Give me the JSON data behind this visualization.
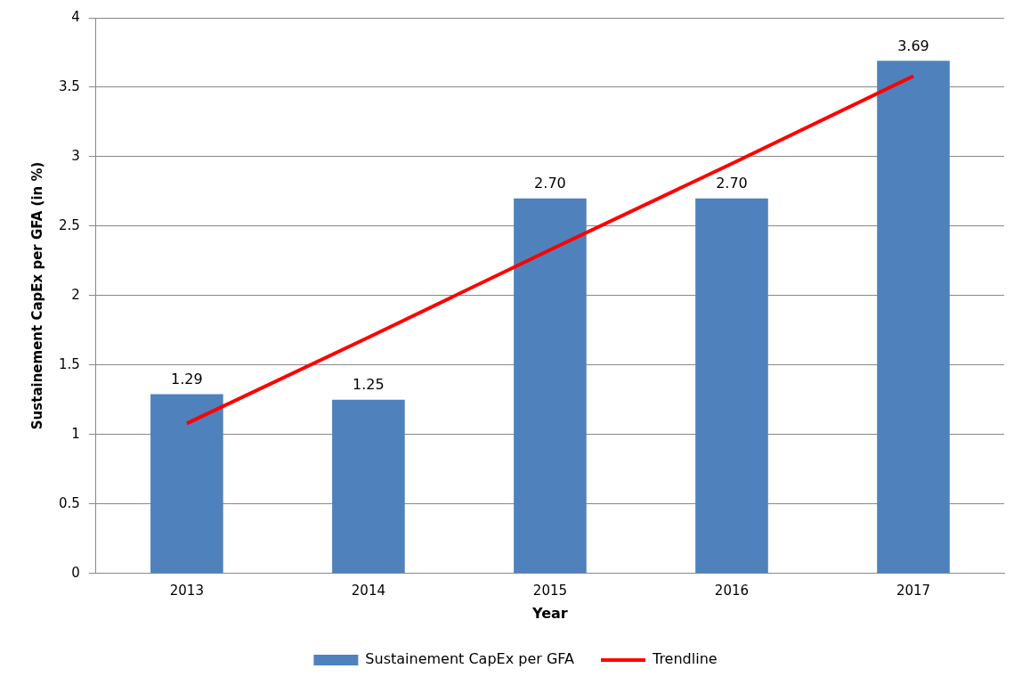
{
  "chart_data": {
    "type": "bar",
    "xlabel": "Year",
    "ylabel": "Sustainement CapEx per GFA (in %)",
    "categories": [
      "2013",
      "2014",
      "2015",
      "2016",
      "2017"
    ],
    "series": [
      {
        "name": "Sustainement CapEx per GFA",
        "color": "#4f81bd",
        "values": [
          1.29,
          1.25,
          2.7,
          2.7,
          3.69
        ],
        "value_labels": [
          "1.29",
          "1.25",
          "2.70",
          "2.70",
          "3.69"
        ]
      },
      {
        "name": "Trendline",
        "type": "line",
        "color": "#ff0000",
        "values": [
          1.08,
          1.7,
          2.33,
          2.95,
          3.58
        ],
        "marker": "none"
      }
    ],
    "ylim": [
      0,
      4
    ],
    "yticks": [
      0,
      0.5,
      1,
      1.5,
      2,
      2.5,
      3,
      3.5,
      4
    ],
    "grid": "y",
    "legend": "bottom"
  }
}
